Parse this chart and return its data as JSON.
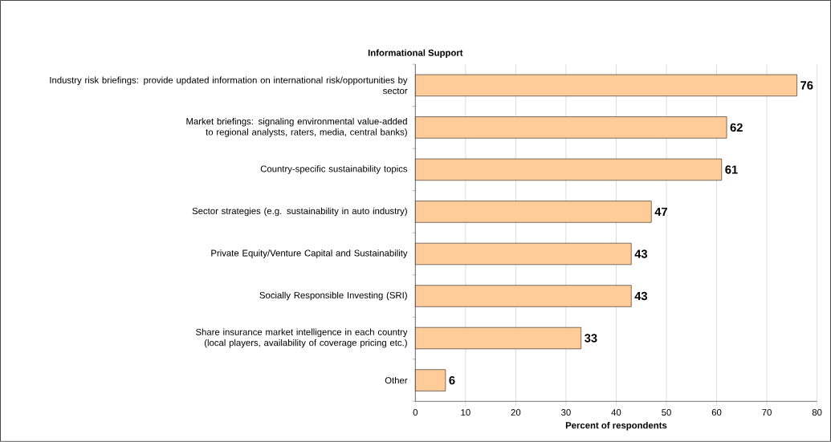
{
  "chart_data": {
    "type": "bar",
    "orientation": "horizontal",
    "title": "Informational Support",
    "xlabel": "Percent of respondents",
    "categories": [
      "Industry risk briefings: provide updated information on international risk/opportunities by sector",
      "Market briefings: signaling environmental value-added to regional analysts, raters, media,  central banks)",
      "Country-specific sustainability topics",
      "Sector strategies (e.g. sustainability in auto industry)",
      "Private Equity/Venture Capital and Sustainability",
      "Socially Responsible Investing (SRI)",
      "Share insurance market intelligence in each country (local players, availability of coverage pricing etc.)",
      "Other"
    ],
    "values": [
      76,
      62,
      61,
      47,
      43,
      43,
      33,
      6
    ],
    "color": "#ffcc99",
    "data_labels": true,
    "grid": "x",
    "xlim": [
      0,
      80
    ],
    "xticks": [
      0,
      10,
      20,
      30,
      40,
      50,
      60,
      70,
      80
    ]
  }
}
